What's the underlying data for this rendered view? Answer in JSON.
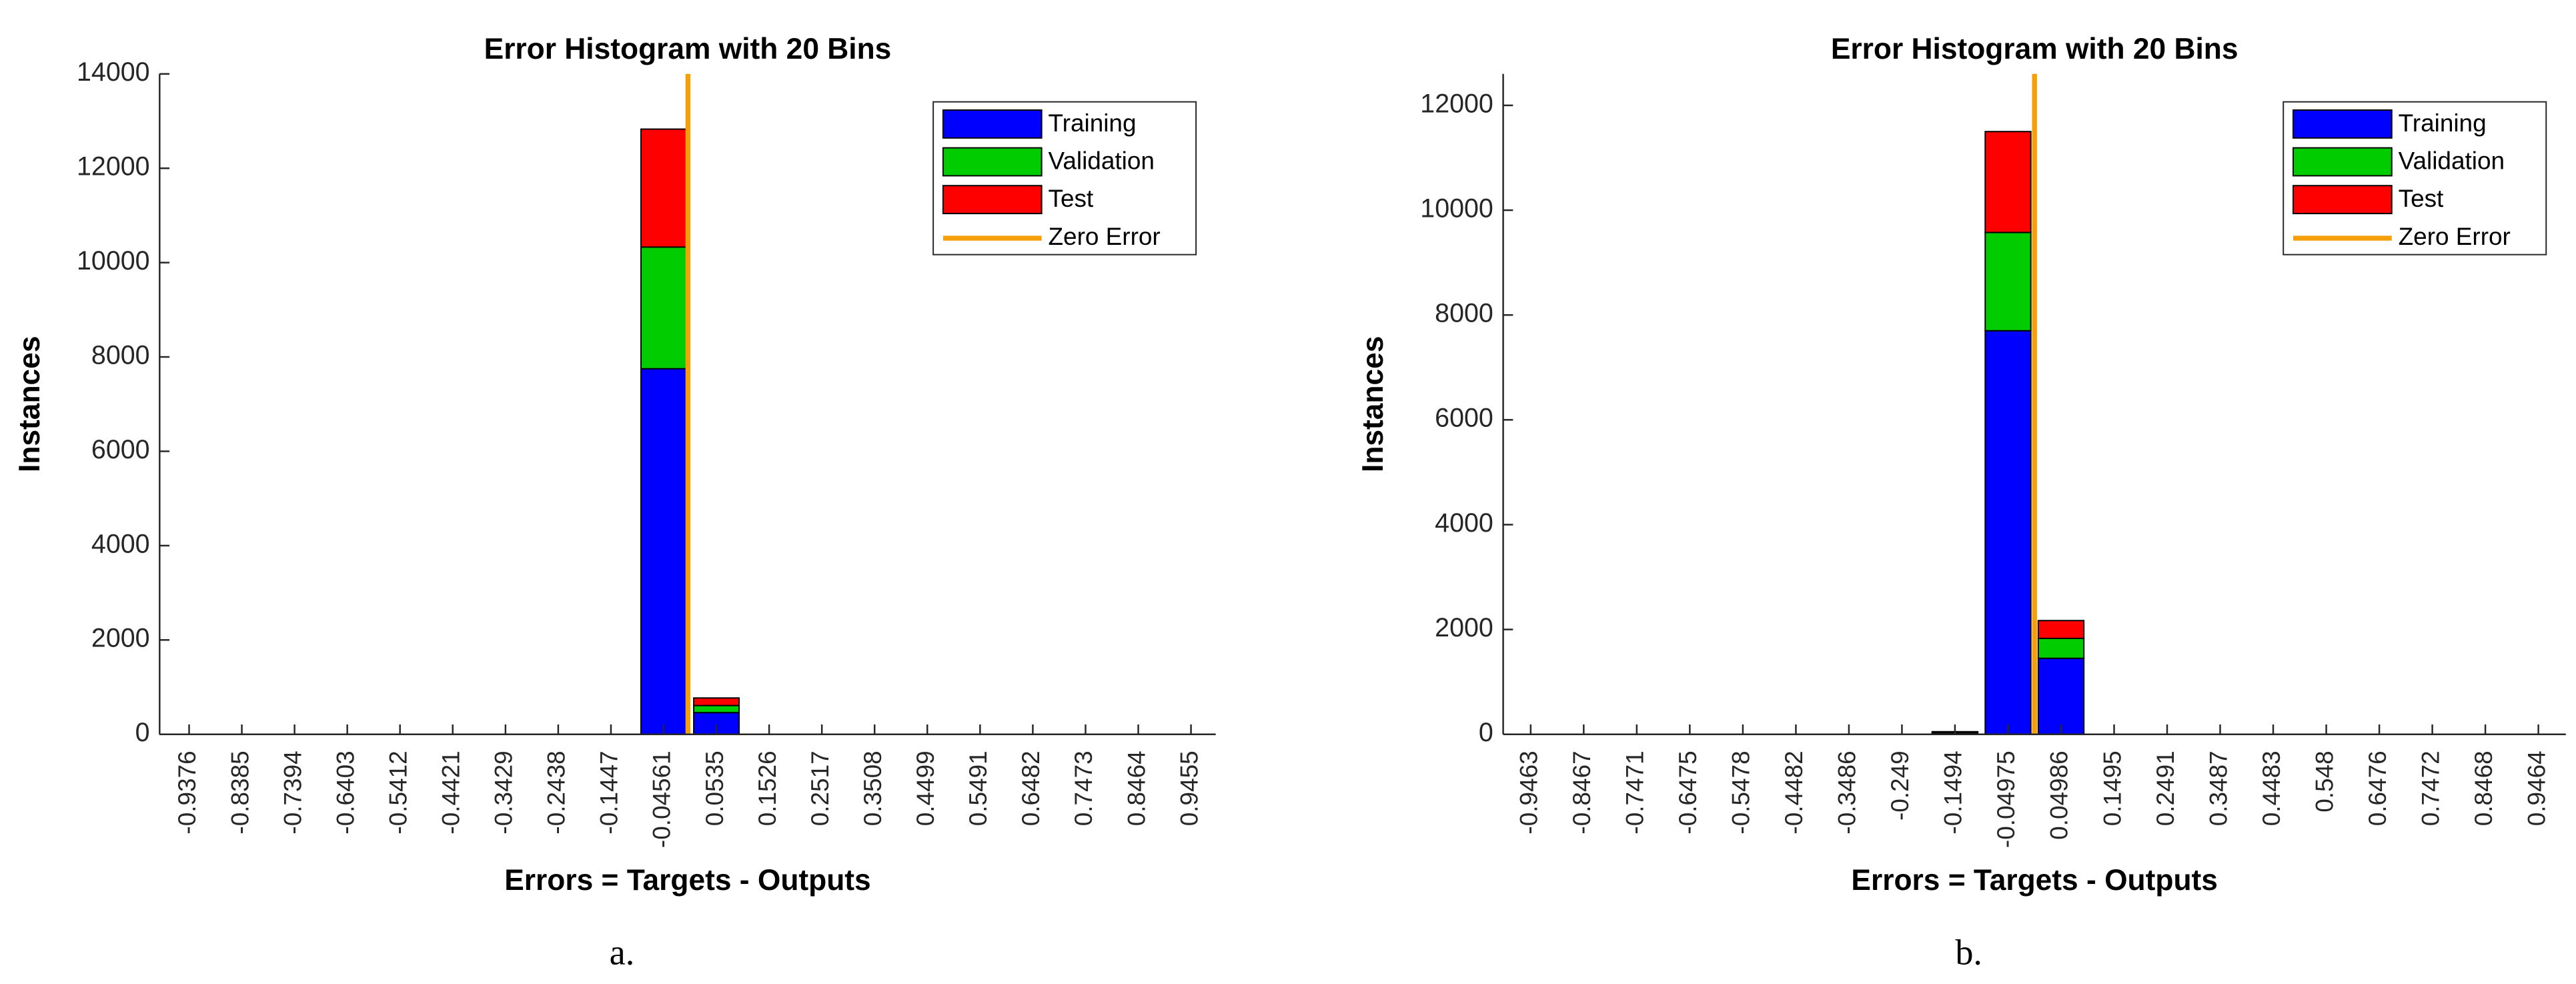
{
  "chart_data": [
    {
      "type": "bar",
      "stacked": true,
      "title": "Error Histogram with 20 Bins",
      "xlabel": "Errors = Targets - Outputs",
      "ylabel": "Instances",
      "caption": "a.",
      "x": [
        -0.9376,
        -0.8385,
        -0.7394,
        -0.6403,
        -0.5412,
        -0.4421,
        -0.3429,
        -0.2438,
        -0.1447,
        -0.04561,
        0.0535,
        0.1526,
        0.2517,
        0.3508,
        0.4499,
        0.5491,
        0.6482,
        0.7473,
        0.8464,
        0.9455
      ],
      "series": [
        {
          "name": "Training",
          "color": "#0000ff",
          "values": [
            0,
            0,
            0,
            0,
            0,
            0,
            0,
            0,
            0,
            7750,
            460,
            0,
            0,
            0,
            0,
            0,
            0,
            0,
            0,
            0
          ]
        },
        {
          "name": "Validation",
          "color": "#00cc00",
          "values": [
            0,
            0,
            0,
            0,
            0,
            0,
            0,
            0,
            0,
            2580,
            150,
            0,
            0,
            0,
            0,
            0,
            0,
            0,
            0,
            0
          ]
        },
        {
          "name": "Test",
          "color": "#ff0000",
          "values": [
            0,
            0,
            0,
            0,
            0,
            0,
            0,
            0,
            0,
            2500,
            160,
            0,
            0,
            0,
            0,
            0,
            0,
            0,
            0,
            0
          ]
        }
      ],
      "zero_line": {
        "name": "Zero Error",
        "color": "#f5a00a",
        "x": 0
      },
      "xlim": [
        -0.993,
        0.992
      ],
      "ylim": [
        0,
        14000
      ],
      "yticks": [
        0,
        2000,
        4000,
        6000,
        8000,
        10000,
        12000,
        14000
      ],
      "legend": "upper right"
    },
    {
      "type": "bar",
      "stacked": true,
      "title": "Error Histogram with 20 Bins",
      "xlabel": "Errors = Targets - Outputs",
      "ylabel": "Instances",
      "caption": "b.",
      "x": [
        -0.9463,
        -0.8467,
        -0.7471,
        -0.6475,
        -0.5478,
        -0.4482,
        -0.3486,
        -0.249,
        -0.1494,
        -0.04975,
        0.04986,
        0.1495,
        0.2491,
        0.3487,
        0.4483,
        0.548,
        0.6476,
        0.7472,
        0.8468,
        0.9464
      ],
      "series": [
        {
          "name": "Training",
          "color": "#0000ff",
          "values": [
            0,
            0,
            0,
            0,
            0,
            0,
            0,
            0,
            30,
            7700,
            1450,
            0,
            0,
            0,
            0,
            0,
            0,
            0,
            0,
            0
          ]
        },
        {
          "name": "Validation",
          "color": "#00cc00",
          "values": [
            0,
            0,
            0,
            0,
            0,
            0,
            0,
            0,
            10,
            1875,
            380,
            0,
            0,
            0,
            0,
            0,
            0,
            0,
            0,
            0
          ]
        },
        {
          "name": "Test",
          "color": "#ff0000",
          "values": [
            0,
            0,
            0,
            0,
            0,
            0,
            0,
            0,
            10,
            1925,
            340,
            0,
            0,
            0,
            0,
            0,
            0,
            0,
            0,
            0
          ]
        }
      ],
      "zero_line": {
        "name": "Zero Error",
        "color": "#f5a00a",
        "x": 0
      },
      "xlim": [
        -0.998,
        0.998
      ],
      "ylim": [
        0,
        12600
      ],
      "yticks": [
        0,
        2000,
        4000,
        6000,
        8000,
        10000,
        12000
      ],
      "legend": "upper right"
    }
  ]
}
